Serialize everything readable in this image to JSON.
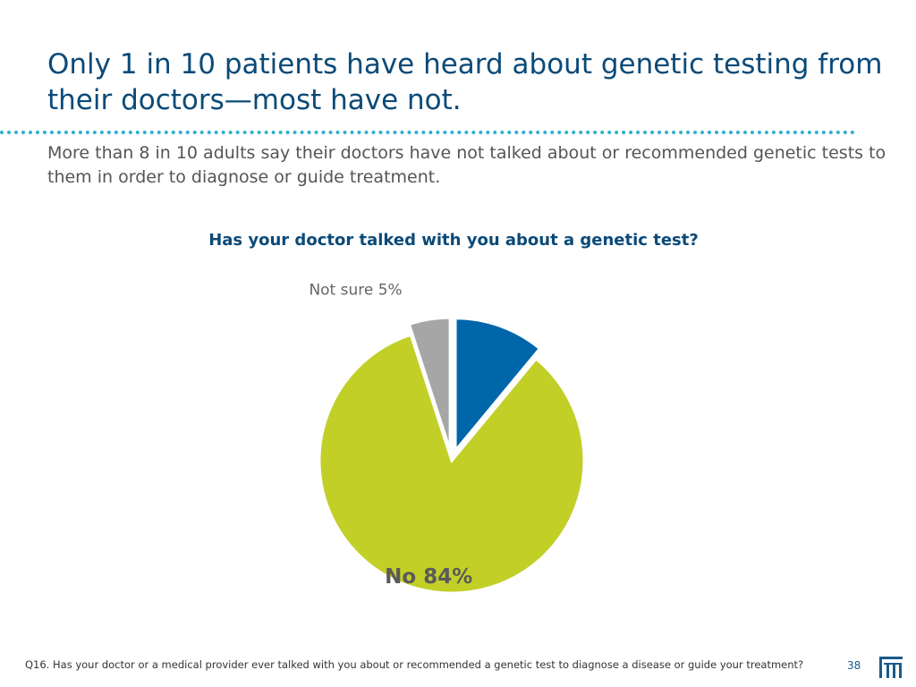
{
  "slide": {
    "title": "Only 1 in 10 patients have heard about genetic testing from their doctors—most have not.",
    "subtitle": "More than 8 in 10 adults say their doctors have not talked about or recommended genetic tests to them in order to diagnose or guide treatment.",
    "footnote": "Q16. Has your doctor or a medical provider ever talked with you about or recommended a genetic test to diagnose a disease or guide your treatment?",
    "page_number": "38",
    "logo_icon": "building-columns-logo-icon"
  },
  "chart_data": {
    "type": "pie",
    "title": "Has your doctor talked with you about a genetic test?",
    "slices": [
      {
        "name": "",
        "value": 11,
        "color": "#0066aa",
        "label": "",
        "exploded": true
      },
      {
        "name": "No",
        "value": 84,
        "color": "#c2cf27",
        "label": "No 84%",
        "exploded": false
      },
      {
        "name": "Not sure",
        "value": 5,
        "color": "#a6a6a6",
        "label": "Not sure 5%",
        "exploded": true
      }
    ],
    "start_angle_deg": 0,
    "direction": "clockwise"
  }
}
